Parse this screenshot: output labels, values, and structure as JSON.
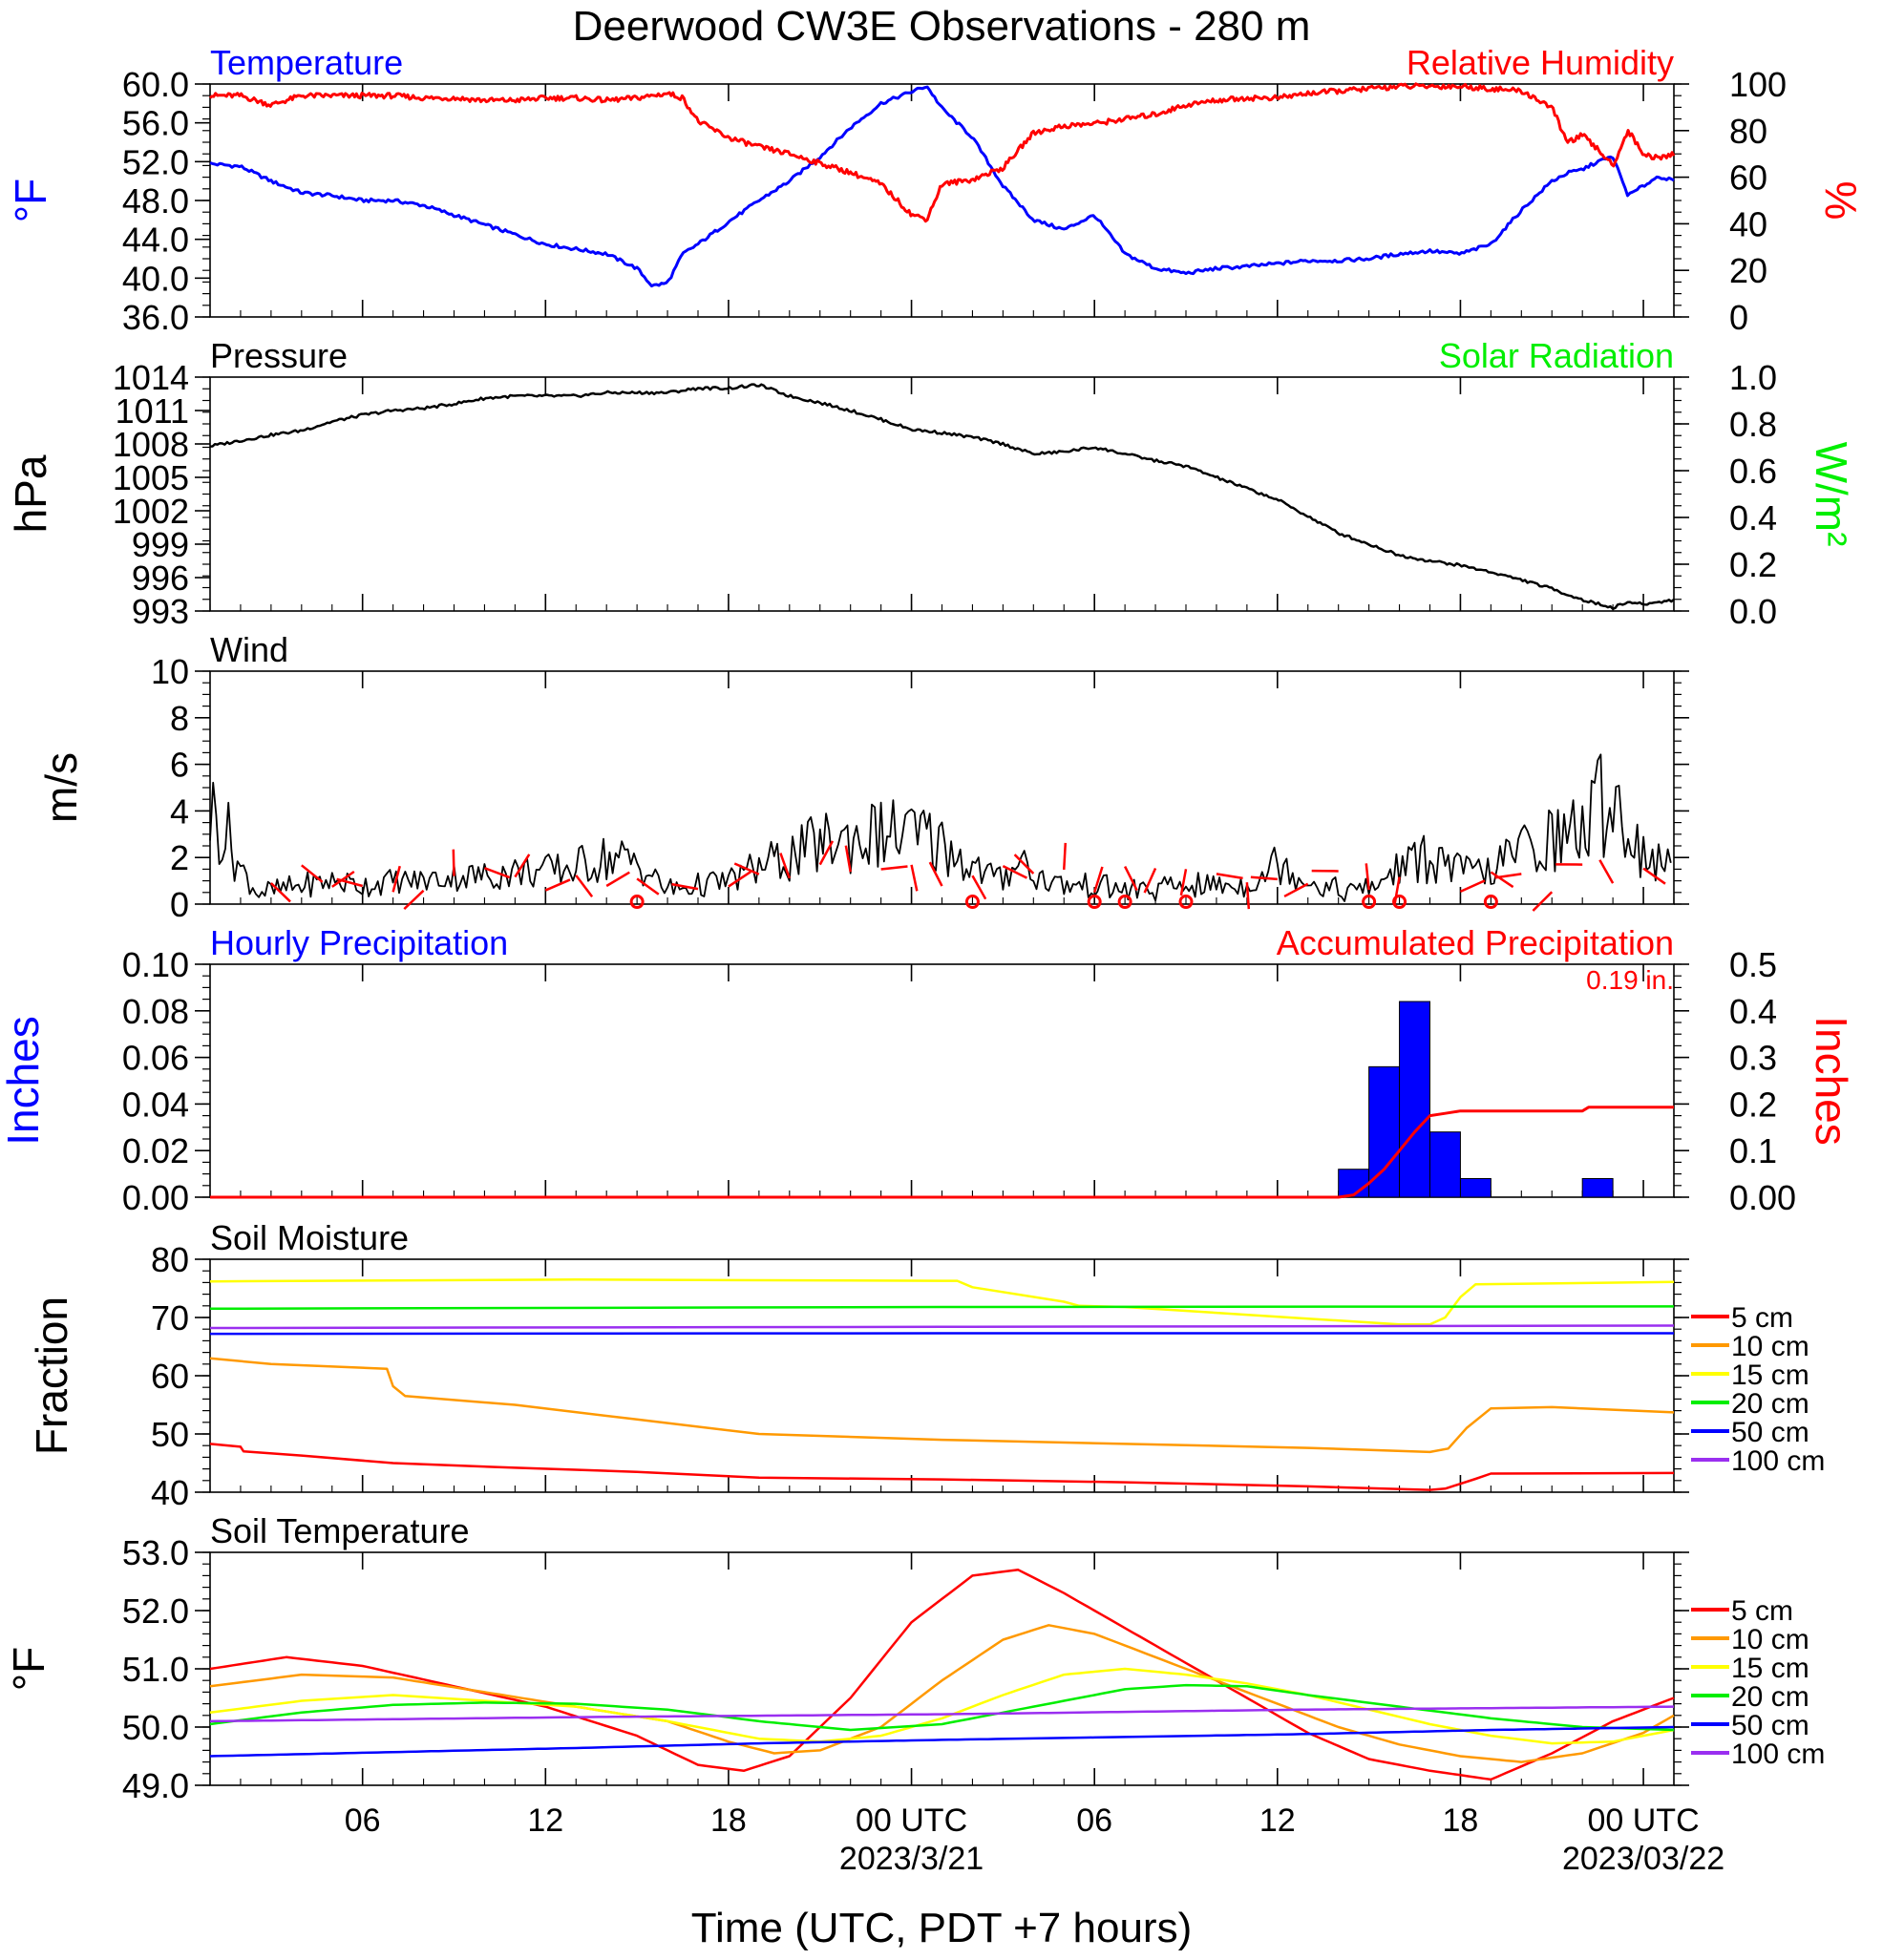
{
  "page": {
    "title": "Deerwood CW3E Observations - 280 m",
    "xlabel": "Time (UTC, PDT +7 hours)"
  },
  "colors": {
    "blue": "#0000ff",
    "red": "#ff0000",
    "green": "#00ee00",
    "black": "#000000",
    "orange": "#ff9900",
    "yellow": "#ffff00",
    "purple": "#9a2ff0"
  },
  "chart_data": [
    {
      "id": "temp_rh",
      "type": "line",
      "title_left": "Temperature",
      "title_right": "Relative Humidity",
      "ylabel_left": "°F",
      "ylabel_right": "%",
      "ylim_left": [
        36,
        60
      ],
      "yticks_left": [
        "60.0",
        "56.0",
        "52.0",
        "48.0",
        "44.0",
        "40.0",
        "36.0"
      ],
      "ylim_right": [
        0,
        100
      ],
      "yticks_right": [
        "100",
        "80",
        "60",
        "40",
        "20",
        "0"
      ],
      "x_hours": [
        0,
        1,
        2,
        3,
        4,
        5,
        6,
        7,
        8,
        9,
        10,
        11,
        12,
        13,
        14,
        14.5,
        15,
        15.5,
        16,
        17,
        18,
        19,
        20,
        21,
        22,
        23,
        23.5,
        24,
        25,
        26,
        27,
        28,
        29,
        30,
        31,
        32,
        33,
        34,
        35,
        36,
        37,
        38,
        39,
        40,
        41,
        42,
        43,
        44,
        44.5,
        45,
        45.5,
        46,
        46.5,
        47,
        47.5,
        48
      ],
      "series": [
        {
          "name": "Temperature",
          "axis": "left",
          "color": "#0000ff",
          "values": [
            51.8,
            51.5,
            50.0,
            48.8,
            48.5,
            48.0,
            48.0,
            47.5,
            46.5,
            45.5,
            44.5,
            43.5,
            43.0,
            42.5,
            41.0,
            39.2,
            39.5,
            42.5,
            43.5,
            45.8,
            48.0,
            50.0,
            52.5,
            55.5,
            58.0,
            59.2,
            59.8,
            57.5,
            54.5,
            49.5,
            46.0,
            45.0,
            46.5,
            42.5,
            41.0,
            40.5,
            41.0,
            41.2,
            41.5,
            41.8,
            41.8,
            42.0,
            42.5,
            42.8,
            42.5,
            43.5,
            47.0,
            50.0,
            50.8,
            51.2,
            52.0,
            52.5,
            48.5,
            49.5,
            50.5,
            50.0
          ]
        },
        {
          "name": "Relative Humidity",
          "axis": "right",
          "color": "#ff0000",
          "values": [
            95,
            95,
            91,
            95,
            95,
            95,
            95,
            94,
            94,
            93,
            93,
            94,
            94,
            93,
            94,
            95,
            96,
            94,
            84,
            77,
            73,
            70,
            66,
            62,
            57,
            44,
            42,
            57,
            59,
            64,
            79,
            82,
            83,
            85,
            87,
            91,
            93,
            94,
            94,
            96,
            97,
            98,
            99,
            99,
            99,
            98,
            97,
            90,
            75,
            78,
            72,
            65,
            80,
            70,
            68,
            70
          ]
        }
      ]
    },
    {
      "id": "pressure_solar",
      "type": "line",
      "title_left": "Pressure",
      "title_right": "Solar Radiation",
      "ylabel_left": "hPa",
      "ylabel_right": "W/m²",
      "ylim_left": [
        993,
        1014
      ],
      "yticks_left": [
        "1014",
        "1011",
        "1008",
        "1005",
        "1002",
        "999",
        "996",
        "993"
      ],
      "ylim_right": [
        0,
        1
      ],
      "yticks_right": [
        "1.0",
        "0.8",
        "0.6",
        "0.4",
        "0.2",
        "0.0"
      ],
      "x_hours": [
        0,
        1,
        2,
        3,
        4,
        5,
        6,
        7,
        8,
        9,
        10,
        11,
        12,
        13,
        14,
        15,
        16,
        17,
        18,
        19,
        20,
        21,
        22,
        23,
        24,
        25,
        26,
        27,
        28,
        29,
        30,
        31,
        32,
        33,
        34,
        35,
        36,
        37,
        38,
        39,
        40,
        41,
        42,
        43,
        44,
        45,
        46,
        46.5,
        47,
        48
      ],
      "series": [
        {
          "name": "Pressure",
          "axis": "left",
          "color": "#000000",
          "values": [
            1007.8,
            1008.3,
            1008.8,
            1009.2,
            1010.0,
            1010.6,
            1011.0,
            1011.2,
            1011.6,
            1012.1,
            1012.3,
            1012.3,
            1012.3,
            1012.6,
            1012.6,
            1012.6,
            1013.0,
            1013.0,
            1013.3,
            1012.3,
            1011.7,
            1011.0,
            1010.2,
            1009.3,
            1009.0,
            1008.6,
            1008.0,
            1007.1,
            1007.3,
            1007.7,
            1007.1,
            1006.5,
            1006.0,
            1005.0,
            1004.0,
            1003.0,
            1001.5,
            1000.0,
            999.0,
            998.0,
            997.5,
            997.1,
            996.5,
            995.8,
            995.0,
            994.0,
            993.3,
            993.8,
            993.6,
            994.0
          ]
        }
      ]
    },
    {
      "id": "wind",
      "type": "line",
      "title_left": "Wind",
      "ylabel_left": "m/s",
      "ylim_left": [
        0,
        10
      ],
      "yticks_left": [
        "10",
        "8",
        "6",
        "4",
        "2",
        "0"
      ],
      "series": [
        {
          "name": "Wind speed",
          "color": "#000000",
          "x_hours": [
            0,
            0.5,
            1,
            1.5,
            2,
            3,
            4,
            5,
            6,
            7,
            8,
            9,
            10,
            11,
            12,
            13,
            14,
            15,
            16,
            17,
            18,
            19,
            20,
            21,
            22,
            23,
            24,
            25,
            26,
            26.5,
            27,
            28,
            29,
            30,
            31,
            32,
            33,
            34,
            35,
            36,
            37,
            38,
            39,
            40,
            41,
            42,
            43,
            44,
            45,
            46,
            46.5,
            47,
            47.5,
            48
          ],
          "values": [
            4.0,
            3.2,
            1.5,
            0.6,
            0.5,
            0.8,
            1.0,
            0.8,
            1.0,
            1.0,
            1.2,
            1.2,
            1.4,
            1.4,
            1.6,
            2.0,
            1.8,
            0.6,
            0.8,
            1.0,
            1.6,
            2.0,
            2.6,
            2.8,
            3.0,
            3.0,
            2.6,
            1.6,
            1.0,
            2.2,
            1.2,
            0.8,
            0.8,
            0.6,
            0.6,
            0.8,
            0.8,
            0.8,
            1.8,
            1.0,
            0.6,
            0.6,
            1.6,
            2.0,
            1.4,
            1.4,
            2.4,
            2.8,
            3.2,
            5.0,
            3.0,
            2.2,
            1.8,
            1.4
          ]
        }
      ],
      "wind_barbs_hours": [
        2,
        3,
        4,
        5,
        6,
        7,
        8,
        9,
        10,
        11,
        12,
        13,
        14,
        16,
        17,
        18,
        19,
        20,
        21,
        22,
        23,
        24,
        25,
        26,
        27,
        28,
        29,
        30,
        31,
        32,
        33,
        34,
        35,
        36,
        37,
        38,
        39,
        41,
        42,
        43,
        44,
        45,
        46,
        47
      ],
      "calm_circles_hours": [
        14,
        25,
        29,
        30,
        32,
        38,
        39,
        42
      ]
    },
    {
      "id": "precip",
      "type": "bar",
      "title_left": "Hourly Precipitation",
      "title_right": "Accumulated Precipitation",
      "annotation": "0.19 in.",
      "ylabel_left": "Inches",
      "ylabel_right": "Inches",
      "ylim_left": [
        0,
        0.1
      ],
      "yticks_left": [
        "0.10",
        "0.08",
        "0.06",
        "0.04",
        "0.02",
        "0.00"
      ],
      "ylim_right": [
        0,
        0.5
      ],
      "yticks_right": [
        "0.5",
        "0.4",
        "0.3",
        "0.2",
        "0.1",
        "0.00"
      ],
      "bars": {
        "name": "Hourly Precipitation",
        "color": "#0000ff",
        "start_hours": [
          37,
          38,
          39,
          40,
          41,
          45
        ],
        "values": [
          0.012,
          0.056,
          0.084,
          0.028,
          0.008,
          0.008
        ]
      },
      "accumulated": {
        "name": "Accumulated Precipitation",
        "color": "#ff0000",
        "x_hours": [
          0,
          37,
          37.5,
          38,
          38.5,
          39,
          39.5,
          40,
          40.5,
          41,
          43,
          45,
          45.2,
          48
        ],
        "values": [
          0,
          0,
          0.005,
          0.03,
          0.06,
          0.1,
          0.14,
          0.175,
          0.18,
          0.185,
          0.185,
          0.185,
          0.193,
          0.193
        ]
      }
    },
    {
      "id": "soil_moisture",
      "type": "line",
      "title_left": "Soil Moisture",
      "ylabel_left": "Fraction",
      "ylim_left": [
        40,
        80
      ],
      "yticks_left": [
        "80",
        "70",
        "60",
        "50",
        "40"
      ],
      "legend": [
        "5 cm",
        "10 cm",
        "15 cm",
        "20 cm",
        "50 cm",
        "100 cm"
      ],
      "series": [
        {
          "name": "5 cm",
          "color": "#ff0000",
          "x_hours": [
            0,
            1,
            1.1,
            3,
            6,
            10,
            14,
            18,
            24,
            30,
            36,
            40,
            40.5,
            41.5,
            42,
            48
          ],
          "values": [
            48.3,
            47.8,
            47.0,
            46.3,
            45.0,
            44.2,
            43.5,
            42.5,
            42.2,
            41.7,
            41.0,
            40.4,
            40.6,
            42.3,
            43.2,
            43.3
          ]
        },
        {
          "name": "10 cm",
          "color": "#ff9900",
          "x_hours": [
            0,
            2,
            5.8,
            6,
            6.4,
            10,
            14,
            18,
            24,
            30,
            36,
            40,
            40.6,
            41.2,
            42,
            44,
            48
          ],
          "values": [
            63,
            62,
            61.2,
            58.2,
            56.5,
            55,
            52.5,
            50,
            49,
            48.3,
            47.6,
            46.9,
            47.5,
            51,
            54.4,
            54.6,
            53.7
          ]
        },
        {
          "name": "15 cm",
          "color": "#ffff00",
          "x_hours": [
            0,
            12,
            24,
            24.5,
            25,
            28,
            28.5,
            30,
            36,
            39,
            40,
            40.5,
            41,
            41.5,
            48
          ],
          "values": [
            76.2,
            76.5,
            76.3,
            76.3,
            75.2,
            72.7,
            72.0,
            71.8,
            69.8,
            68.8,
            68.8,
            70.0,
            73.5,
            75.7,
            76.1
          ]
        },
        {
          "name": "20 cm",
          "color": "#00ee00",
          "x_hours": [
            0,
            24,
            48
          ],
          "values": [
            71.5,
            71.8,
            71.9
          ]
        },
        {
          "name": "50 cm",
          "color": "#0000ff",
          "x_hours": [
            0,
            24,
            48
          ],
          "values": [
            67.2,
            67.3,
            67.3
          ]
        },
        {
          "name": "100 cm",
          "color": "#9a2ff0",
          "x_hours": [
            0,
            24,
            48
          ],
          "values": [
            68.2,
            68.4,
            68.6
          ]
        }
      ]
    },
    {
      "id": "soil_temperature",
      "type": "line",
      "title_left": "Soil Temperature",
      "ylabel_left": "°F",
      "ylim_left": [
        49,
        53
      ],
      "yticks_left": [
        "53.0",
        "52.0",
        "51.0",
        "50.0",
        "49.0"
      ],
      "legend": [
        "5 cm",
        "10 cm",
        "15 cm",
        "20 cm",
        "50 cm",
        "100 cm"
      ],
      "series": [
        {
          "name": "5 cm",
          "color": "#ff0000",
          "x_hours": [
            0,
            2.5,
            5,
            8,
            11,
            14,
            16,
            17.5,
            19,
            21,
            23,
            25,
            26.5,
            28,
            30,
            32,
            34,
            36,
            38,
            40,
            42,
            44,
            46,
            48
          ],
          "values": [
            51.0,
            51.2,
            51.05,
            50.7,
            50.35,
            49.85,
            49.35,
            49.25,
            49.5,
            50.5,
            51.8,
            52.6,
            52.7,
            52.3,
            51.7,
            51.1,
            50.5,
            49.9,
            49.45,
            49.25,
            49.1,
            49.55,
            50.1,
            50.5
          ]
        },
        {
          "name": "10 cm",
          "color": "#ff9900",
          "x_hours": [
            0,
            3,
            6,
            9,
            12,
            15,
            17,
            18.5,
            20,
            22,
            24,
            26,
            27.5,
            29,
            31,
            33,
            35,
            37,
            39,
            41,
            43,
            45,
            47,
            48
          ],
          "values": [
            50.7,
            50.9,
            50.85,
            50.6,
            50.35,
            50.1,
            49.75,
            49.55,
            49.6,
            50.0,
            50.8,
            51.5,
            51.75,
            51.6,
            51.2,
            50.8,
            50.4,
            50.0,
            49.7,
            49.5,
            49.4,
            49.55,
            49.9,
            50.2
          ]
        },
        {
          "name": "15 cm",
          "color": "#ffff00",
          "x_hours": [
            0,
            3,
            6,
            9,
            12,
            15,
            18,
            20,
            22,
            24,
            26,
            28,
            30,
            32,
            34,
            36,
            38,
            40,
            42,
            44,
            46,
            48
          ],
          "values": [
            50.25,
            50.45,
            50.55,
            50.45,
            50.35,
            50.1,
            49.8,
            49.75,
            49.85,
            50.15,
            50.55,
            50.9,
            51.0,
            50.9,
            50.75,
            50.55,
            50.3,
            50.05,
            49.85,
            49.72,
            49.75,
            49.95
          ]
        },
        {
          "name": "20 cm",
          "color": "#00ee00",
          "x_hours": [
            0,
            3,
            6,
            9,
            12,
            15,
            18,
            21,
            24,
            27,
            30,
            32,
            34,
            36,
            39,
            42,
            45,
            48
          ],
          "values": [
            50.05,
            50.25,
            50.38,
            50.42,
            50.4,
            50.3,
            50.1,
            49.95,
            50.05,
            50.35,
            50.65,
            50.72,
            50.7,
            50.55,
            50.35,
            50.15,
            50.0,
            49.95
          ]
        },
        {
          "name": "50 cm",
          "color": "#0000ff",
          "x_hours": [
            0,
            6,
            12,
            18,
            24,
            30,
            36,
            42,
            48
          ],
          "values": [
            49.5,
            49.57,
            49.64,
            49.72,
            49.78,
            49.83,
            49.88,
            49.95,
            50.0
          ]
        },
        {
          "name": "100 cm",
          "color": "#9a2ff0",
          "x_hours": [
            0,
            12,
            24,
            36,
            48
          ],
          "values": [
            50.1,
            50.17,
            50.22,
            50.3,
            50.35
          ]
        }
      ]
    }
  ],
  "x_axis": {
    "range_hours": [
      0,
      48
    ],
    "tick_hours": [
      5,
      11,
      17,
      23,
      29,
      35,
      41,
      47
    ],
    "tick_labels": [
      "06",
      "12",
      "18",
      "00 UTC",
      "06",
      "12",
      "18",
      "00 UTC"
    ],
    "date_labels": [
      {
        "hour": 23,
        "text": "2023/3/21"
      },
      {
        "hour": 47,
        "text": "2023/03/22"
      }
    ]
  }
}
